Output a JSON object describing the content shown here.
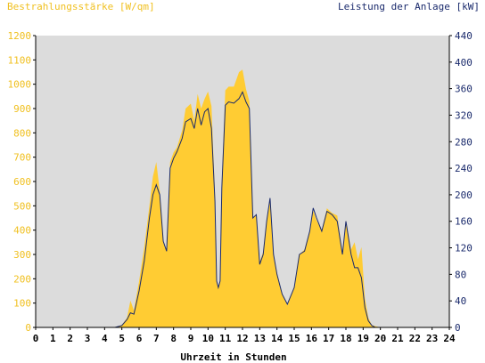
{
  "chart_data": {
    "type": "area",
    "title_left": "Bestrahlungsstärke [W/qm]",
    "title_right": "Leistung der Anlage [kW]",
    "xlabel": "Uhrzeit in Stunden",
    "xlim": [
      0,
      24
    ],
    "ylim_left": [
      0,
      1200
    ],
    "ylim_right": [
      0,
      440
    ],
    "x_ticks": [
      "0",
      "1",
      "2",
      "3",
      "4",
      "5",
      "6",
      "7",
      "8",
      "9",
      "10",
      "11",
      "12",
      "13",
      "14",
      "15",
      "16",
      "17",
      "18",
      "19",
      "20",
      "21",
      "22",
      "23",
      "24"
    ],
    "y_ticks_left": [
      "0",
      "100",
      "200",
      "300",
      "400",
      "500",
      "600",
      "700",
      "800",
      "900",
      "1000",
      "1100",
      "1200"
    ],
    "y_ticks_right": [
      "0",
      "40",
      "80",
      "120",
      "160",
      "200",
      "240",
      "280",
      "320",
      "360",
      "400",
      "440"
    ],
    "grid": false,
    "colors": {
      "plot_background": "#dcdcdc",
      "irradiance_fill": "#ffcc33",
      "power_line": "#1a2a6c",
      "left_axis_text": "#f0c020",
      "right_axis_text": "#1a2a6c"
    },
    "series": [
      {
        "axis": "left",
        "style": "area",
        "x": [
          0,
          4.6,
          5.0,
          5.3,
          5.5,
          5.7,
          6.0,
          6.3,
          6.6,
          6.8,
          7.0,
          7.2,
          7.4,
          7.6,
          7.8,
          8.0,
          8.2,
          8.5,
          8.7,
          9.0,
          9.2,
          9.4,
          9.6,
          9.8,
          10.0,
          10.2,
          10.4,
          10.5,
          10.6,
          10.7,
          10.8,
          11.0,
          11.2,
          11.5,
          11.8,
          12.0,
          12.2,
          12.4,
          12.6,
          12.8,
          13.0,
          13.2,
          13.4,
          13.6,
          13.8,
          14.0,
          14.3,
          14.6,
          15.0,
          15.3,
          15.6,
          15.9,
          16.1,
          16.3,
          16.6,
          16.9,
          17.2,
          17.5,
          17.8,
          18.0,
          18.3,
          18.5,
          18.7,
          18.9,
          19.1,
          19.3,
          19.5,
          19.7,
          20.0,
          24
        ],
        "y": [
          0,
          0,
          10,
          40,
          110,
          70,
          190,
          330,
          500,
          620,
          680,
          560,
          350,
          320,
          680,
          720,
          740,
          810,
          900,
          920,
          850,
          960,
          900,
          940,
          970,
          910,
          550,
          190,
          170,
          190,
          600,
          975,
          990,
          990,
          1050,
          1060,
          980,
          930,
          450,
          460,
          270,
          310,
          440,
          520,
          300,
          220,
          140,
          90,
          170,
          300,
          320,
          390,
          480,
          440,
          400,
          490,
          470,
          460,
          310,
          440,
          320,
          350,
          280,
          330,
          120,
          40,
          10,
          5,
          0,
          0
        ]
      },
      {
        "axis": "right",
        "style": "line",
        "x": [
          0,
          4.6,
          5.0,
          5.3,
          5.5,
          5.7,
          6.0,
          6.3,
          6.6,
          6.8,
          7.0,
          7.2,
          7.4,
          7.6,
          7.8,
          8.0,
          8.2,
          8.5,
          8.7,
          9.0,
          9.2,
          9.4,
          9.6,
          9.8,
          10.0,
          10.2,
          10.4,
          10.5,
          10.6,
          10.7,
          10.8,
          11.0,
          11.2,
          11.5,
          11.8,
          12.0,
          12.2,
          12.4,
          12.6,
          12.8,
          13.0,
          13.2,
          13.4,
          13.6,
          13.8,
          14.0,
          14.3,
          14.6,
          15.0,
          15.3,
          15.6,
          15.9,
          16.1,
          16.3,
          16.6,
          16.9,
          17.2,
          17.5,
          17.8,
          18.0,
          18.3,
          18.5,
          18.7,
          18.9,
          19.1,
          19.3,
          19.5,
          19.7,
          20.0,
          24
        ],
        "y": [
          0,
          0,
          3,
          12,
          22,
          20,
          55,
          100,
          165,
          200,
          215,
          200,
          130,
          115,
          240,
          255,
          265,
          285,
          310,
          315,
          300,
          330,
          305,
          325,
          330,
          300,
          190,
          70,
          60,
          70,
          210,
          335,
          340,
          338,
          345,
          355,
          340,
          330,
          165,
          170,
          95,
          110,
          160,
          195,
          110,
          80,
          50,
          35,
          60,
          110,
          115,
          145,
          180,
          165,
          145,
          175,
          170,
          160,
          110,
          160,
          110,
          90,
          90,
          75,
          30,
          10,
          3,
          0,
          0,
          0
        ]
      }
    ]
  }
}
